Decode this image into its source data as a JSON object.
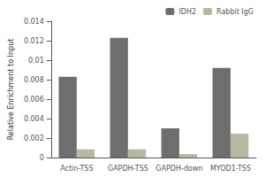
{
  "chart_data": {
    "type": "bar",
    "categories": [
      "Actin-TSS",
      "GAPDH-TSS",
      "GAPDH-down",
      "MYOD1-TSS"
    ],
    "series": [
      {
        "name": "IDH2",
        "color": "#6e6e6e",
        "values": [
          0.0083,
          0.0123,
          0.003,
          0.0092
        ]
      },
      {
        "name": "Rabbit IgG",
        "color": "#b8b8a0",
        "values": [
          0.00085,
          0.00085,
          0.00035,
          0.00245
        ]
      }
    ],
    "ylabel": "Relative Enrichment to Input",
    "ylim": [
      0,
      0.014
    ],
    "yticks": [
      0,
      0.002,
      0.004,
      0.006,
      0.008,
      0.01,
      0.012,
      0.014
    ],
    "grid": false,
    "legend": "upper right"
  }
}
